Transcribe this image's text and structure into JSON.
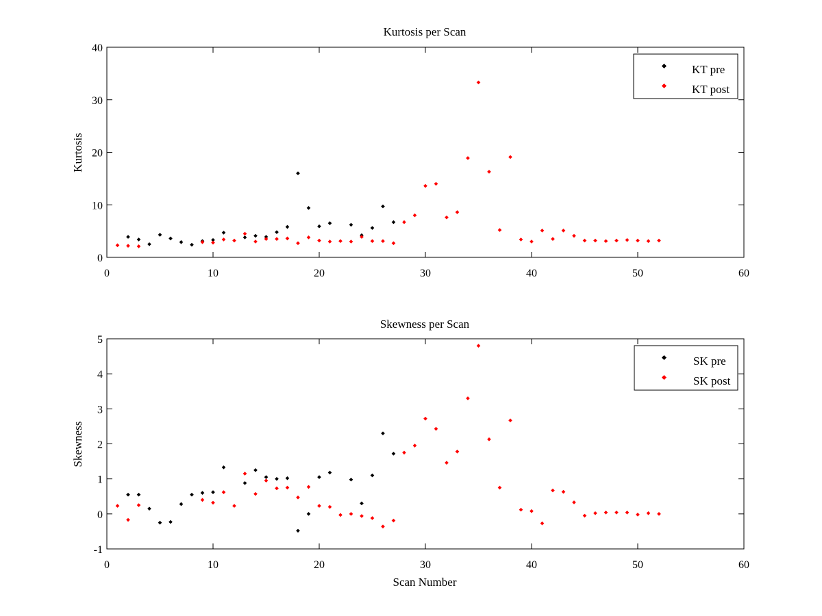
{
  "chart_data": [
    {
      "type": "scatter",
      "title": "Kurtosis per Scan",
      "xlabel": "",
      "ylabel": "Kurtosis",
      "xlim": [
        0,
        60
      ],
      "ylim": [
        0,
        40
      ],
      "xticks": [
        0,
        10,
        20,
        30,
        40,
        50,
        60
      ],
      "yticks": [
        0,
        10,
        20,
        30,
        40
      ],
      "legend_position": "top-right",
      "grid": false,
      "series": [
        {
          "name": "KT pre",
          "color": "#000000",
          "x": [
            2,
            3,
            4,
            5,
            6,
            7,
            8,
            9,
            10,
            11,
            13,
            14,
            15,
            16,
            17,
            18,
            19,
            20,
            21,
            23,
            24,
            25,
            26,
            27
          ],
          "y": [
            3.9,
            3.4,
            2.5,
            4.3,
            3.6,
            2.9,
            2.4,
            3.1,
            3.3,
            4.7,
            3.8,
            4.1,
            3.9,
            4.8,
            5.8,
            16.0,
            9.4,
            5.9,
            6.5,
            6.2,
            4.2,
            5.6,
            9.7,
            6.7
          ]
        },
        {
          "name": "KT post",
          "color": "#ff0000",
          "x": [
            1,
            2,
            3,
            9,
            10,
            11,
            12,
            13,
            14,
            15,
            16,
            17,
            18,
            19,
            20,
            21,
            22,
            23,
            24,
            25,
            26,
            27,
            28,
            29,
            30,
            31,
            32,
            33,
            34,
            35,
            36,
            37,
            38,
            39,
            40,
            41,
            42,
            43,
            44,
            45,
            46,
            47,
            48,
            49,
            50,
            51,
            52
          ],
          "y": [
            2.3,
            2.2,
            2.1,
            2.9,
            2.8,
            3.4,
            3.2,
            4.5,
            3.0,
            3.5,
            3.5,
            3.6,
            2.7,
            3.8,
            3.2,
            3.0,
            3.1,
            3.0,
            3.9,
            3.1,
            3.1,
            2.7,
            6.7,
            8.0,
            13.6,
            14.0,
            7.6,
            8.6,
            18.9,
            33.3,
            16.3,
            5.2,
            19.1,
            3.4,
            3.0,
            5.1,
            3.5,
            5.1,
            4.1,
            3.2,
            3.2,
            3.1,
            3.2,
            3.3,
            3.2,
            3.1,
            3.2
          ]
        }
      ]
    },
    {
      "type": "scatter",
      "title": "Skewness per Scan",
      "xlabel": "Scan Number",
      "ylabel": "Skewness",
      "xlim": [
        0,
        60
      ],
      "ylim": [
        -1,
        5
      ],
      "xticks": [
        0,
        10,
        20,
        30,
        40,
        50,
        60
      ],
      "yticks": [
        -1,
        0,
        1,
        2,
        3,
        4,
        5
      ],
      "legend_position": "top-right",
      "grid": false,
      "series": [
        {
          "name": "SK pre",
          "color": "#000000",
          "x": [
            2,
            3,
            4,
            5,
            6,
            7,
            8,
            9,
            10,
            11,
            13,
            14,
            15,
            16,
            17,
            18,
            19,
            20,
            21,
            23,
            24,
            25,
            26,
            27
          ],
          "y": [
            0.55,
            0.55,
            0.15,
            -0.25,
            -0.23,
            0.28,
            0.55,
            0.6,
            0.62,
            1.33,
            0.88,
            1.25,
            1.05,
            1.0,
            1.02,
            -0.48,
            0.0,
            1.05,
            1.18,
            0.98,
            0.3,
            1.1,
            2.3,
            1.72
          ]
        },
        {
          "name": "SK post",
          "color": "#ff0000",
          "x": [
            1,
            2,
            3,
            9,
            10,
            11,
            12,
            13,
            14,
            15,
            16,
            17,
            18,
            19,
            20,
            21,
            22,
            23,
            24,
            25,
            26,
            27,
            28,
            29,
            30,
            31,
            32,
            33,
            34,
            35,
            36,
            37,
            38,
            39,
            40,
            41,
            42,
            43,
            44,
            45,
            46,
            47,
            48,
            49,
            50,
            51,
            52
          ],
          "y": [
            0.23,
            -0.17,
            0.25,
            0.4,
            0.32,
            0.62,
            0.23,
            1.15,
            0.57,
            0.95,
            0.73,
            0.75,
            0.47,
            0.77,
            0.23,
            0.2,
            -0.03,
            0.0,
            -0.06,
            -0.12,
            -0.36,
            -0.19,
            1.75,
            1.95,
            2.72,
            2.43,
            1.46,
            1.78,
            3.3,
            4.8,
            2.13,
            0.75,
            2.67,
            0.12,
            0.08,
            -0.27,
            0.67,
            0.63,
            0.33,
            -0.05,
            0.02,
            0.04,
            0.04,
            0.04,
            -0.02,
            0.02,
            0.0
          ]
        }
      ]
    }
  ]
}
